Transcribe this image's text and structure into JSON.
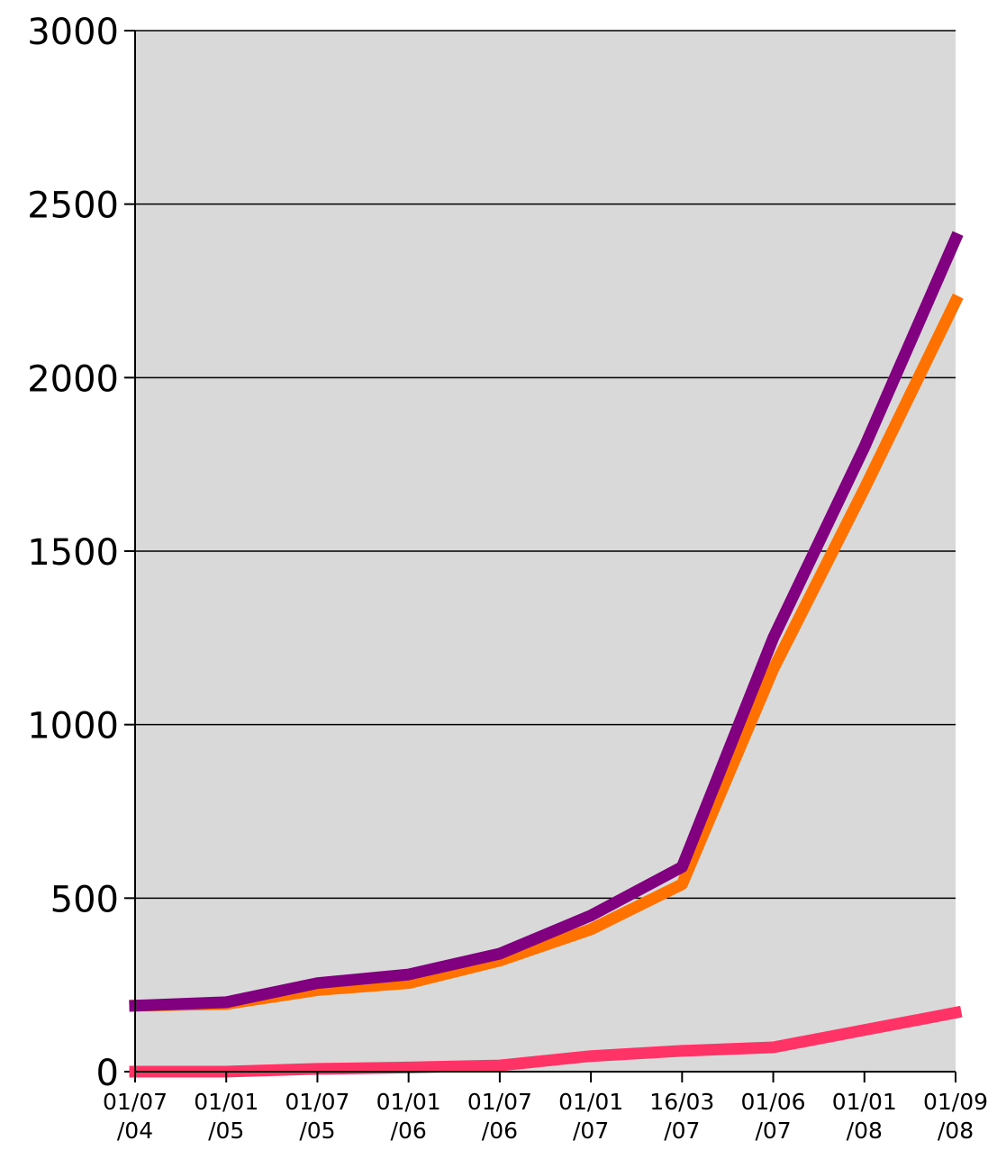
{
  "chart_data": {
    "type": "line",
    "title": "",
    "xlabel": "",
    "ylabel": "",
    "ylim": [
      0,
      3000
    ],
    "yticks": [
      "0",
      "500",
      "1000",
      "1500",
      "2000",
      "2500",
      "3000"
    ],
    "grid": true,
    "legend": "none",
    "background_color": "#d9d9d9",
    "categories": [
      [
        "01/07",
        "/04"
      ],
      [
        "01/01",
        "/05"
      ],
      [
        "01/07",
        "/05"
      ],
      [
        "01/01",
        "/06"
      ],
      [
        "01/07",
        "/06"
      ],
      [
        "01/01",
        "/07"
      ],
      [
        "16/03",
        "/07"
      ],
      [
        "01/06",
        "/07"
      ],
      [
        "01/01",
        "/08"
      ],
      [
        "01/09",
        "/08"
      ]
    ],
    "series": [
      {
        "color": "#ff7200",
        "values": [
          190,
          195,
          235,
          255,
          320,
          410,
          540,
          1160,
          1680,
          2220
        ]
      },
      {
        "color": "#800080",
        "values": [
          190,
          200,
          255,
          280,
          340,
          450,
          590,
          1250,
          1800,
          2400
        ]
      },
      {
        "color": "#ff3366",
        "values": [
          0,
          0,
          8,
          12,
          18,
          45,
          60,
          70,
          120,
          170
        ]
      }
    ]
  }
}
